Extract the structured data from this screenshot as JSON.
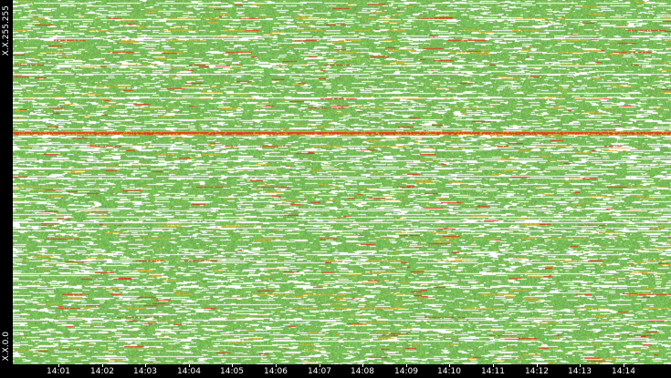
{
  "chart_data": {
    "type": "heatmap",
    "y_labels": {
      "top": "X.X.255.255",
      "bottom": "X.X.0.0"
    },
    "x_tick_labels": [
      "14:01",
      "14:02",
      "14:03",
      "14:04",
      "14:05",
      "14:06",
      "14:07",
      "14:08",
      "14:09",
      "14:10",
      "14:11",
      "14:12",
      "14:13",
      "14:14"
    ],
    "colors": {
      "background": "#ffffff",
      "low": "#7cc15a",
      "mid": "#d8b93a",
      "high": "#e23a1c",
      "axis_background": "#000000",
      "axis_text": "#ffffff"
    }
  }
}
